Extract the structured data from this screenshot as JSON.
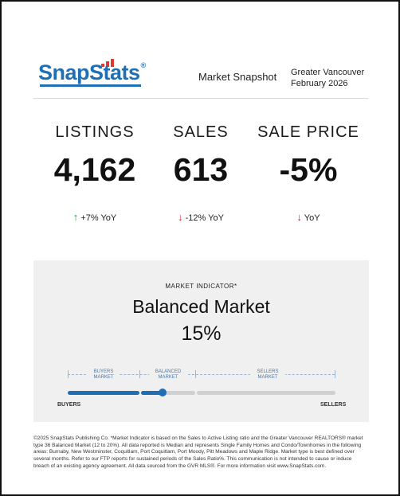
{
  "brand": {
    "name_part1": "Snap",
    "name_part2": "Stats",
    "registered": "®"
  },
  "header": {
    "title": "Market Snapshot",
    "region": "Greater Vancouver",
    "period": "February 2026"
  },
  "metrics": [
    {
      "label": "LISTINGS",
      "value": "4,162",
      "change": "+7% YoY",
      "direction": "up"
    },
    {
      "label": "SALES",
      "value": "613",
      "change": "-12% YoY",
      "direction": "down"
    },
    {
      "label": "SALE PRICE",
      "value": "-5%",
      "change": "YoY",
      "direction": "down"
    }
  ],
  "indicator": {
    "label": "MARKET INDICATOR*",
    "market_type": "Balanced Market",
    "percentage": "15%",
    "segments": [
      "BUYERS MARKET",
      "BALANCED MARKET",
      "SELLERS MARKET"
    ],
    "end_left": "BUYERS",
    "end_right": "SELLERS",
    "position_fraction": 0.15
  },
  "colors": {
    "brand_blue": "#1f6fb5",
    "brand_red": "#e03a2f",
    "up_green": "#2a9d3c",
    "down_red": "#d62828"
  },
  "footer": "©2025 SnapStats Publishing Co. *Market Indicator is based on the Sales to Active Listing ratio and the Greater Vancouver REALTORS® market type 36 Balanced Market (12 to 20%). All data reported is Median and represents Single Family Homes and Condo/Townhomes in the following areas: Burnaby, New Westminster, Coquitlam, Port Coquitlam, Port Moody, Pitt Meadows and Maple Ridge. Market type is best defined over several months. Refer to our FTP reports for sustained periods of the Sales Ratio%. This communication is not intended to cause or induce breach of an existing agency agreement. All data sourced from the GVR MLS®. For more information visit www.SnapStats.com."
}
